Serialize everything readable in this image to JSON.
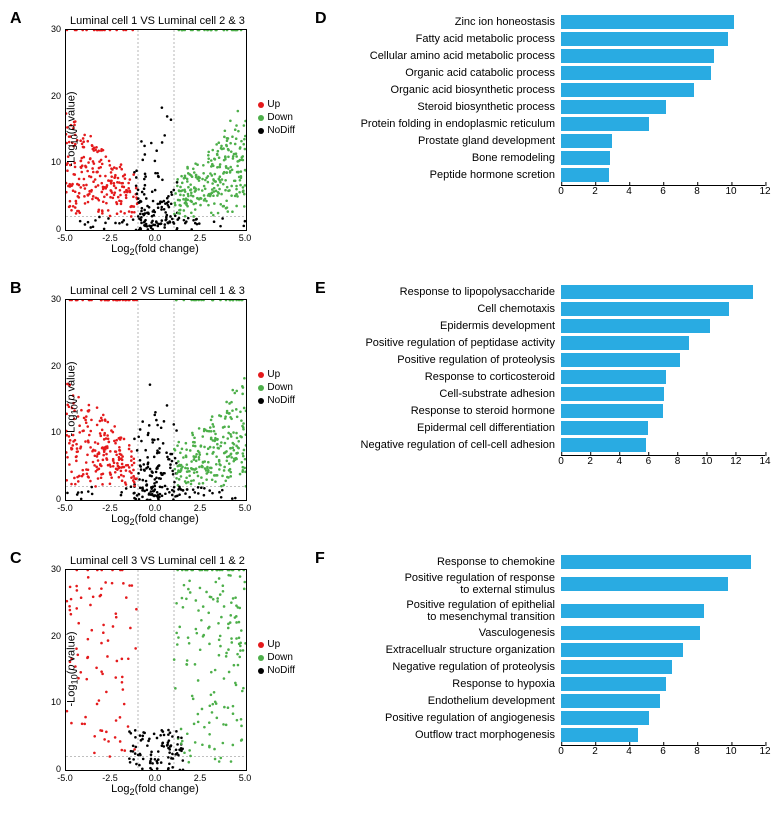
{
  "panels": {
    "A": {
      "label": "A",
      "title": "Luminal cell 1 VS Luminal cell 2 & 3"
    },
    "B": {
      "label": "B",
      "title": "Luminal cell 2 VS Luminal cell 1 & 3"
    },
    "C": {
      "label": "C",
      "title": "Luminal cell 3 VS Luminal cell 1 & 2"
    },
    "D": {
      "label": "D"
    },
    "E": {
      "label": "E"
    },
    "F": {
      "label": "F"
    }
  },
  "volcano": {
    "x_label": "Log₂(fold change)",
    "y_label": "-Log₁₀(p value)",
    "xlim": [
      -5,
      5
    ],
    "ylim": [
      0,
      30
    ],
    "x_ticks": [
      -5.0,
      -2.5,
      0.0,
      2.5,
      5.0
    ],
    "y_ticks": [
      0,
      10,
      20,
      30
    ],
    "colors": {
      "up": "#e41a1c",
      "down": "#4daf4a",
      "nodiff": "#000000"
    },
    "legend": [
      {
        "label": "Up",
        "color": "#e41a1c"
      },
      {
        "label": "Down",
        "color": "#4daf4a"
      },
      {
        "label": "NoDiff",
        "color": "#000000"
      }
    ],
    "vlines": [
      -1,
      1
    ],
    "hline": 2
  },
  "bars": {
    "color": "#29abe2",
    "axis_color": "#000000",
    "label_fontsize": 11,
    "tick_fontsize": 10,
    "D": {
      "xlim": [
        0,
        12
      ],
      "ticks": [
        0,
        2,
        4,
        6,
        8,
        10,
        12
      ],
      "items": [
        {
          "label": "Zinc ion honeostasis",
          "value": 10.2
        },
        {
          "label": "Fatty acid metabolic process",
          "value": 9.8
        },
        {
          "label": "Cellular amino acid metabolic process",
          "value": 9.0
        },
        {
          "label": "Organic acid catabolic process",
          "value": 8.8
        },
        {
          "label": "Organic acid biosynthetic process",
          "value": 7.8
        },
        {
          "label": "Steroid biosynthetic process",
          "value": 6.2
        },
        {
          "label": "Protein folding in endoplasmic reticulum",
          "value": 5.2
        },
        {
          "label": "Prostate gland development",
          "value": 3.0
        },
        {
          "label": "Bone remodeling",
          "value": 2.9
        },
        {
          "label": "Peptide hormone scretion",
          "value": 2.8
        }
      ]
    },
    "E": {
      "xlim": [
        0,
        14
      ],
      "ticks": [
        0,
        2,
        4,
        6,
        8,
        10,
        12,
        14
      ],
      "items": [
        {
          "label": "Response to lipopolysaccharide",
          "value": 13.2
        },
        {
          "label": "Cell chemotaxis",
          "value": 11.5
        },
        {
          "label": "Epidermis development",
          "value": 10.2
        },
        {
          "label": "Positive regulation of peptidase activity",
          "value": 8.8
        },
        {
          "label": "Positive regulation of proteolysis",
          "value": 8.2
        },
        {
          "label": "Response to corticosteroid",
          "value": 7.2
        },
        {
          "label": "Cell-substrate adhesion",
          "value": 7.1
        },
        {
          "label": "Response to steroid hormone",
          "value": 7.0
        },
        {
          "label": "Epidermal cell differentiation",
          "value": 6.0
        },
        {
          "label": "Negative regulation of cell-cell adhesion",
          "value": 5.8
        }
      ]
    },
    "F": {
      "xlim": [
        0,
        12
      ],
      "ticks": [
        0,
        2,
        4,
        6,
        8,
        10,
        12
      ],
      "items": [
        {
          "label": "Response to chemokine",
          "value": 11.2
        },
        {
          "label": "Positive regulation of response to external stimulus",
          "value": 9.8
        },
        {
          "label": "Positive regulation of epithelial to mesenchymal transition",
          "value": 8.4
        },
        {
          "label": "Vasculogenesis",
          "value": 8.2
        },
        {
          "label": "Extracellualr structure organization",
          "value": 7.2
        },
        {
          "label": "Negative regulation of proteolysis",
          "value": 6.5
        },
        {
          "label": "Response to hypoxia",
          "value": 6.2
        },
        {
          "label": "Endothelium development",
          "value": 5.8
        },
        {
          "label": "Positive regulation of angiogenesis",
          "value": 5.2
        },
        {
          "label": "Outflow tract morphogenesis",
          "value": 4.5
        }
      ]
    }
  }
}
